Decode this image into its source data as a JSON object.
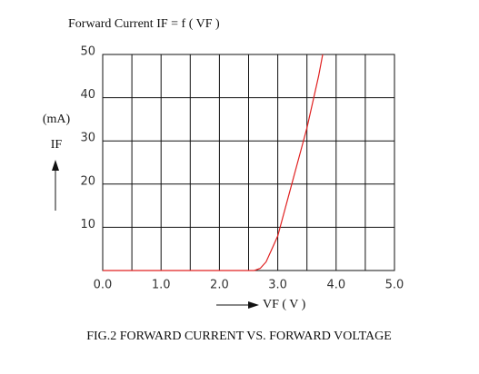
{
  "chart_data": {
    "type": "line",
    "title": "Forward Current IF = f ( VF )",
    "y_unit": "(mA)",
    "y_label": "IF",
    "x_label": "VF ( V )",
    "caption": "FIG.2 FORWARD CURRENT VS. FORWARD VOLTAGE",
    "x": [
      0,
      2.5,
      2.6,
      2.7,
      2.8,
      2.9,
      3.0,
      3.1,
      3.2,
      3.3,
      3.4,
      3.5,
      3.6,
      3.7,
      3.77
    ],
    "series": [
      {
        "color": "#e02020",
        "values": [
          0,
          0,
          0,
          0.5,
          2,
          5,
          8,
          13,
          18,
          23,
          28,
          33,
          39,
          45,
          50
        ]
      }
    ],
    "xlim": [
      0,
      5
    ],
    "xticks": [
      {
        "value": 0,
        "label": "0.0"
      },
      {
        "value": 1,
        "label": "1.0"
      },
      {
        "value": 2,
        "label": "2.0"
      },
      {
        "value": 3,
        "label": "3.0"
      },
      {
        "value": 4,
        "label": "4.0"
      },
      {
        "value": 5,
        "label": "5.0"
      }
    ],
    "x_grid_step": 0.5,
    "ylim": [
      0,
      50
    ],
    "yticks": [
      10,
      20,
      30,
      40,
      50
    ],
    "grid": true
  }
}
